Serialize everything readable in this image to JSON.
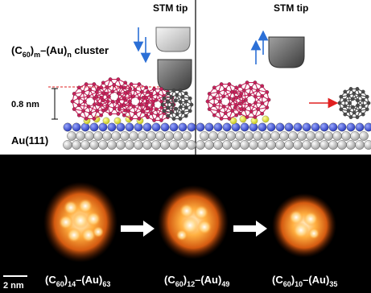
{
  "colors": {
    "background_dark": "#000000",
    "panel_background": "#ffffff",
    "fullerene_red": "#c8205a",
    "fullerene_gray": "#4a4a4a",
    "gold_yellow": "#e6e62a",
    "substrate_blue": "#3a4fd6",
    "substrate_gray": "#c8c8c8",
    "arrow_blue": "#2b6fd6",
    "arrow_red": "#e02020",
    "arrow_white": "#ffffff",
    "tip_light": "#d9d9d9",
    "tip_dark": "#7a7a7a"
  },
  "panels": {
    "left": {
      "tip_label": "STM tip",
      "cluster_label": {
        "base": "(C",
        "sub1": "60",
        "mid": ")",
        "sub2": "m",
        "mid2": "–(Au)",
        "sub3": "n",
        "tail": " cluster"
      },
      "height_label": "0.8 nm",
      "substrate_label": "Au(111)",
      "arrow_icons": [
        "arrow-down-icon",
        "arrow-down-icon"
      ]
    },
    "right": {
      "tip_label": "STM tip",
      "arrow_icons": [
        "arrow-up-icon",
        "arrow-up-icon"
      ],
      "removal_arrow_icon": "arrow-right-icon"
    }
  },
  "stm_images": {
    "scale_bar_label": "2 nm",
    "clusters": [
      {
        "c_sub": "14",
        "au_sub": "63"
      },
      {
        "c_sub": "12",
        "au_sub": "49"
      },
      {
        "c_sub": "10",
        "au_sub": "35"
      }
    ],
    "label_parts": {
      "open": "(C",
      "c60": "60",
      "close": ")",
      "au": "–(Au)"
    },
    "transition_arrow_icon": "arrow-right-icon"
  }
}
